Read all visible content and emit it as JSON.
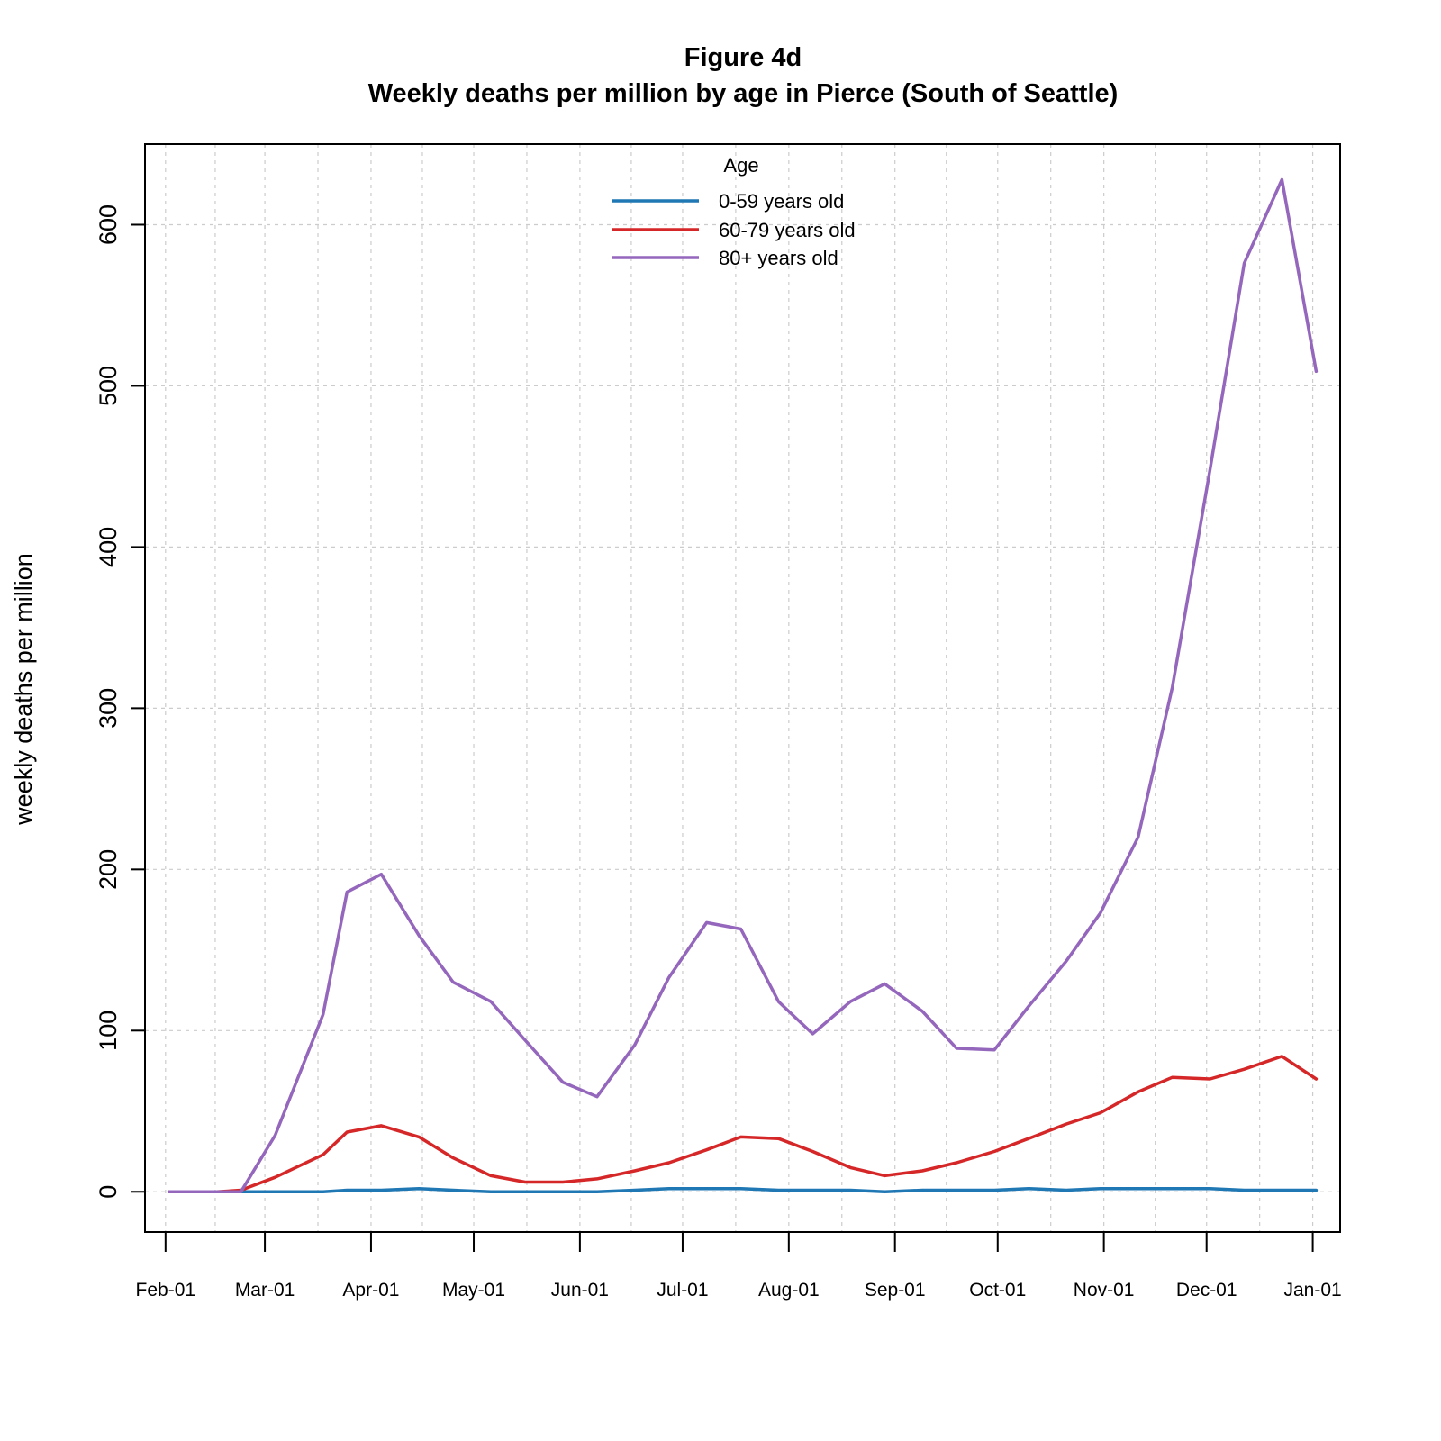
{
  "chart_data": {
    "type": "line",
    "title": "Figure 4d",
    "subtitle": "Weekly deaths per million by age in Pierce (South of Seattle)",
    "xlabel": "",
    "ylabel": "weekly deaths per million",
    "ylim": [
      -25,
      650
    ],
    "yticks": [
      0,
      100,
      200,
      300,
      400,
      500,
      600
    ],
    "xlim": [
      -6,
      343
    ],
    "x_unit": "days since Feb-01",
    "xticks": [
      {
        "label": "Feb-01",
        "day": 0
      },
      {
        "label": "Mar-01",
        "day": 29
      },
      {
        "label": "Apr-01",
        "day": 60
      },
      {
        "label": "May-01",
        "day": 90
      },
      {
        "label": "Jun-01",
        "day": 121
      },
      {
        "label": "Jul-01",
        "day": 151
      },
      {
        "label": "Aug-01",
        "day": 182
      },
      {
        "label": "Sep-01",
        "day": 213
      },
      {
        "label": "Oct-01",
        "day": 243
      },
      {
        "label": "Nov-01",
        "day": 274
      },
      {
        "label": "Dec-01",
        "day": 304
      },
      {
        "label": "Jan-01",
        "day": 335
      }
    ],
    "grid": true,
    "legend": {
      "title": "Age",
      "position": "top-center"
    },
    "x_days": [
      1,
      15,
      22,
      32,
      46,
      53,
      63,
      74,
      84,
      95,
      105,
      116,
      126,
      137,
      147,
      158,
      168,
      179,
      189,
      200,
      210,
      221,
      231,
      242,
      252,
      263,
      273,
      284,
      294,
      305,
      315,
      326,
      336
    ],
    "series": [
      {
        "name": "0-59 years old",
        "color": "#1f77b4",
        "values": [
          0,
          0,
          0,
          0,
          0,
          1,
          1,
          2,
          1,
          0,
          0,
          0,
          0,
          1,
          2,
          2,
          2,
          1,
          1,
          1,
          0,
          1,
          1,
          1,
          2,
          1,
          2,
          2,
          2,
          2,
          1,
          1,
          1
        ]
      },
      {
        "name": "60-79 years old",
        "color": "#d62728",
        "values": [
          0,
          0,
          1,
          9,
          23,
          37,
          41,
          34,
          21,
          10,
          6,
          6,
          8,
          13,
          18,
          26,
          34,
          33,
          25,
          15,
          10,
          13,
          18,
          25,
          33,
          42,
          49,
          62,
          71,
          70,
          76,
          84,
          70
        ]
      },
      {
        "name": "80+ years old",
        "color": "#9467bd",
        "values": [
          0,
          0,
          0,
          35,
          110,
          186,
          197,
          159,
          130,
          118,
          94,
          68,
          59,
          91,
          133,
          167,
          163,
          118,
          98,
          118,
          129,
          112,
          89,
          88,
          115,
          143,
          173,
          220,
          313,
          448,
          576,
          628,
          509
        ]
      }
    ]
  }
}
